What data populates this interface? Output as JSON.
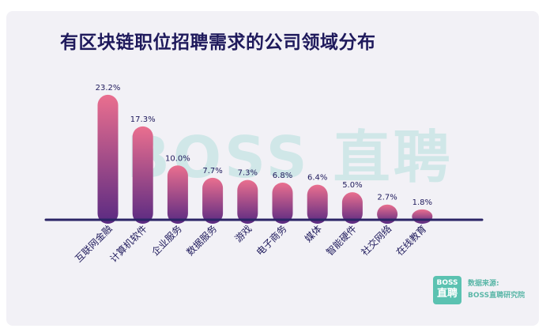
{
  "chart_data": {
    "type": "bar",
    "title": "有区块链职位招聘需求的公司领域分布",
    "categories": [
      "互联网金融",
      "计算机软件",
      "企业服务",
      "数据服务",
      "游戏",
      "电子商务",
      "媒体",
      "智能硬件",
      "社交网络",
      "在线教育"
    ],
    "values": [
      23.2,
      17.3,
      10.0,
      7.7,
      7.3,
      6.8,
      6.4,
      5.0,
      2.7,
      1.8
    ],
    "value_labels": [
      "23.2%",
      "17.3%",
      "10.0%",
      "7.7%",
      "7.3%",
      "6.8%",
      "6.4%",
      "5.0%",
      "2.7%",
      "1.8%"
    ],
    "ylim": [
      0,
      25
    ],
    "unit": "%",
    "grid": false,
    "colors": {
      "bar_top": "#ea6f8f",
      "bar_bottom": "#5a2a82",
      "baseline": "#2b2466",
      "label": "#1f1a5c"
    }
  },
  "watermark": "BOSS 直聘",
  "logo": {
    "line1": "BOSS",
    "line2": "直聘",
    "color": "#5bc2b1"
  },
  "source": {
    "label": "数据来源:",
    "name": "BOSS直聘研究院"
  }
}
